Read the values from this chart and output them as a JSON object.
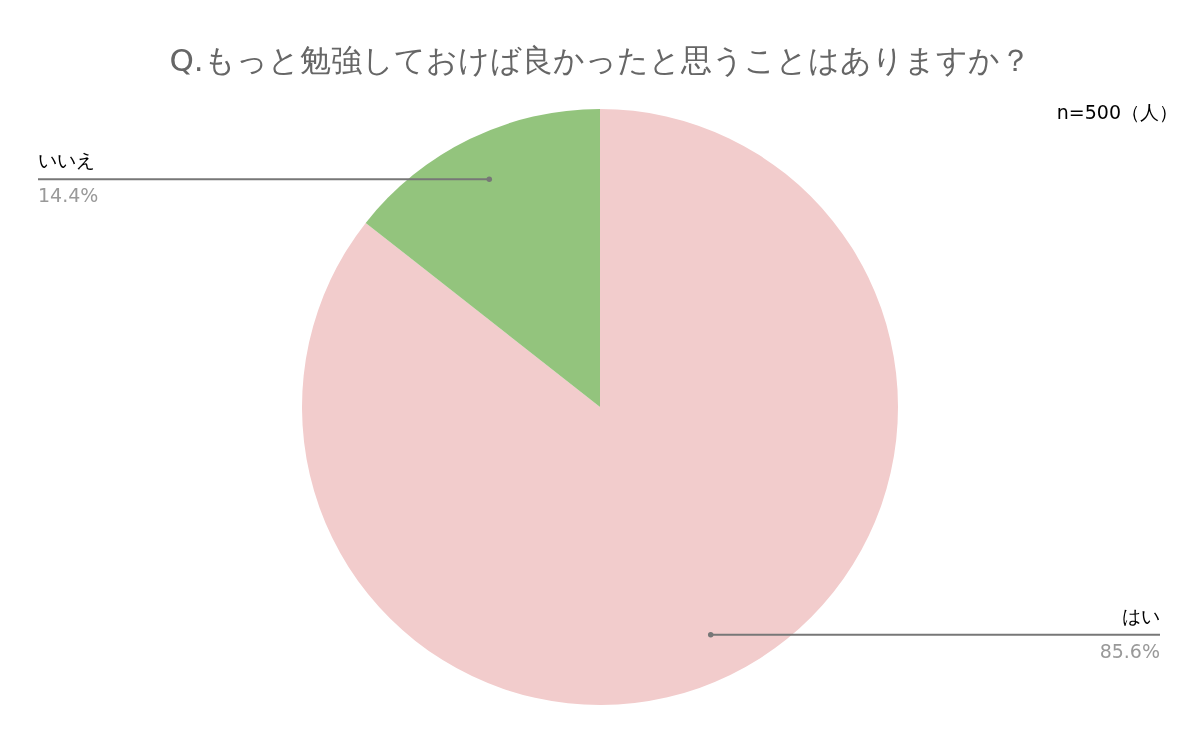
{
  "chart_data": {
    "type": "pie",
    "title": "Q.もっと勉強しておけば良かったと思うことはありますか？",
    "categories": [
      "はい",
      "いいえ"
    ],
    "values": [
      85.6,
      14.4
    ],
    "colors": [
      "#f2cccc",
      "#93c47d"
    ],
    "value_labels": [
      "85.6%",
      "14.4%"
    ],
    "annotations": [
      "n=500（人）"
    ]
  }
}
